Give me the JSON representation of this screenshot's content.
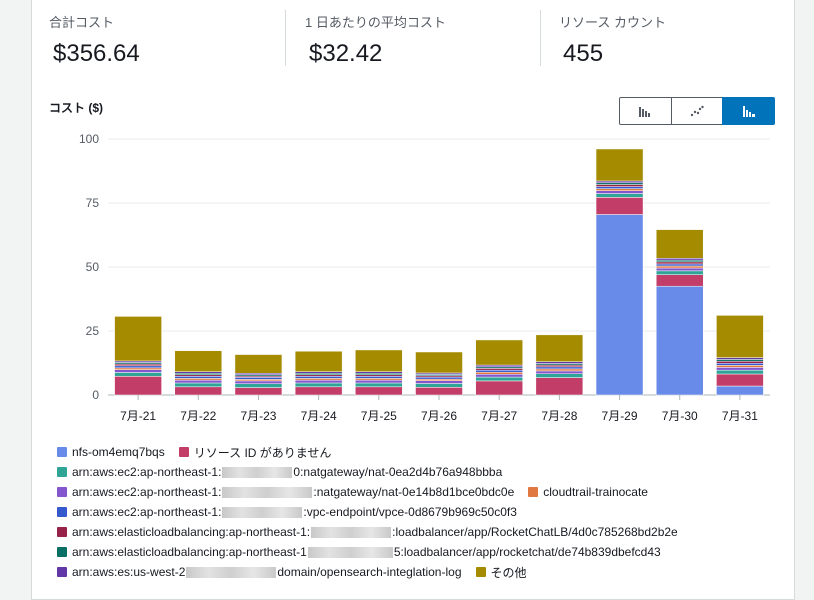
{
  "summary": {
    "total_label": "合計コスト",
    "total_value": "$356.64",
    "avg_label": "1 日あたりの平均コスト",
    "avg_value": "$32.42",
    "count_label": "リソース カウント",
    "count_value": "455"
  },
  "chart_title": "コスト ($)",
  "view_toggle": {
    "options": [
      "bar-chart-icon",
      "line-chart-icon",
      "stacked-bar-chart-icon"
    ],
    "selected": "stacked-bar-chart-icon"
  },
  "chart_data": {
    "type": "bar",
    "stacked": true,
    "categories": [
      "7月-21",
      "7月-22",
      "7月-23",
      "7月-24",
      "7月-25",
      "7月-26",
      "7月-27",
      "7月-28",
      "7月-29",
      "7月-30",
      "7月-31"
    ],
    "ylim": [
      0,
      100
    ],
    "yticks": [
      0,
      25,
      50,
      75,
      100
    ],
    "grid": true,
    "legend_position": "bottom",
    "series": [
      {
        "name": "nfs-om4emq7bqs",
        "color": "#688ae8",
        "values": [
          0,
          0,
          0,
          0,
          0,
          0,
          0,
          0,
          70.5,
          42.5,
          3.5
        ]
      },
      {
        "name": "リソース ID がありません",
        "color": "#c33d69",
        "values": [
          7.3,
          3.2,
          2.9,
          3.2,
          3.2,
          3.0,
          5.5,
          6.8,
          6.7,
          4.5,
          4.7
        ]
      },
      {
        "name": "arn:aws:ec2:ap-northeast-1:██████0:natgateway/nat-0ea2d4b76a948bbba",
        "color": "#2ea597",
        "values": [
          1.5,
          1.5,
          1.5,
          1.5,
          1.5,
          1.5,
          1.5,
          1.5,
          1.5,
          1.5,
          1.5
        ]
      },
      {
        "name": "arn:aws:ec2:ap-northeast-1:██████:natgateway/nat-0e14b8d1bce0bdc0e",
        "color": "#8456ce",
        "values": [
          1.1,
          1.1,
          1.1,
          1.1,
          1.1,
          1.1,
          1.1,
          1.1,
          1.1,
          1.1,
          1.1
        ]
      },
      {
        "name": "cloudtrail-trainocate",
        "color": "#e07941",
        "values": [
          0.7,
          0.7,
          0.6,
          0.7,
          0.7,
          0.6,
          0.8,
          0.8,
          0.8,
          0.8,
          0.8
        ]
      },
      {
        "name": "arn:aws:ec2:ap-northeast-1:██████:vpc-endpoint/vpce-0d8679b969c50c0f3",
        "color": "#3759ce",
        "values": [
          0.8,
          0.8,
          0.8,
          0.8,
          0.8,
          0.8,
          0.8,
          0.8,
          0.8,
          0.8,
          0.8
        ]
      },
      {
        "name": "arn:aws:elasticloadbalancing:ap-northeast-1:██████:loadbalancer/app/RocketChatLB/4d0c785268bd2b2e",
        "color": "#962249",
        "values": [
          0.7,
          0.6,
          0.5,
          0.6,
          0.6,
          0.5,
          0.7,
          0.7,
          0.8,
          0.8,
          0.8
        ]
      },
      {
        "name": "arn:aws:elasticloadbalancing:ap-northeast-1██████:loadbalancer/app/rocketchat/de74b839dbefcd43",
        "color": "#096f64",
        "values": [
          0.6,
          0.6,
          0.5,
          0.6,
          0.6,
          0.5,
          0.6,
          0.6,
          0.7,
          0.7,
          0.7
        ]
      },
      {
        "name": "arn:aws:es:us-west-2██████domain/opensearch-integlation-log",
        "color": "#6237a7",
        "values": [
          0.6,
          0.6,
          0.6,
          0.6,
          0.6,
          0.6,
          0.7,
          0.7,
          0.7,
          0.7,
          0.7
        ]
      },
      {
        "name": "その他",
        "color": "#a48b00",
        "values": [
          17.4,
          8.2,
          7.3,
          8.0,
          8.5,
          8.2,
          9.8,
          10.5,
          12.5,
          11.2,
          16.5
        ]
      }
    ]
  },
  "legend": {
    "rows": [
      [
        {
          "label": "nfs-om4emq7bqs",
          "color": "#688ae8"
        },
        {
          "label": "リソース ID がありません",
          "color": "#c33d69"
        }
      ],
      [
        {
          "pre": "arn:aws:ec2:ap-northeast-1:",
          "post": "0:natgateway/nat-0ea2d4b76a948bbba",
          "color": "#2ea597",
          "redact": true
        }
      ],
      [
        {
          "pre": "arn:aws:ec2:ap-northeast-1:",
          "post": ":natgateway/nat-0e14b8d1bce0bdc0e",
          "color": "#8456ce",
          "redact": true
        },
        {
          "label": "cloudtrail-trainocate",
          "color": "#e07941"
        }
      ],
      [
        {
          "pre": "arn:aws:ec2:ap-northeast-1:",
          "post": ":vpc-endpoint/vpce-0d8679b969c50c0f3",
          "color": "#3759ce",
          "redact": true
        }
      ],
      [
        {
          "pre": "arn:aws:elasticloadbalancing:ap-northeast-1:",
          "post": ":loadbalancer/app/RocketChatLB/4d0c785268bd2b2e",
          "color": "#962249",
          "redact": true
        }
      ],
      [
        {
          "pre": "arn:aws:elasticloadbalancing:ap-northeast-1",
          "post": "5:loadbalancer/app/rocketchat/de74b839dbefcd43",
          "color": "#096f64",
          "redact": true
        }
      ],
      [
        {
          "pre": "arn:aws:es:us-west-2",
          "post": "domain/opensearch-integlation-log",
          "color": "#6237a7",
          "redact": true
        },
        {
          "label": "その他",
          "color": "#a48b00"
        }
      ]
    ]
  }
}
